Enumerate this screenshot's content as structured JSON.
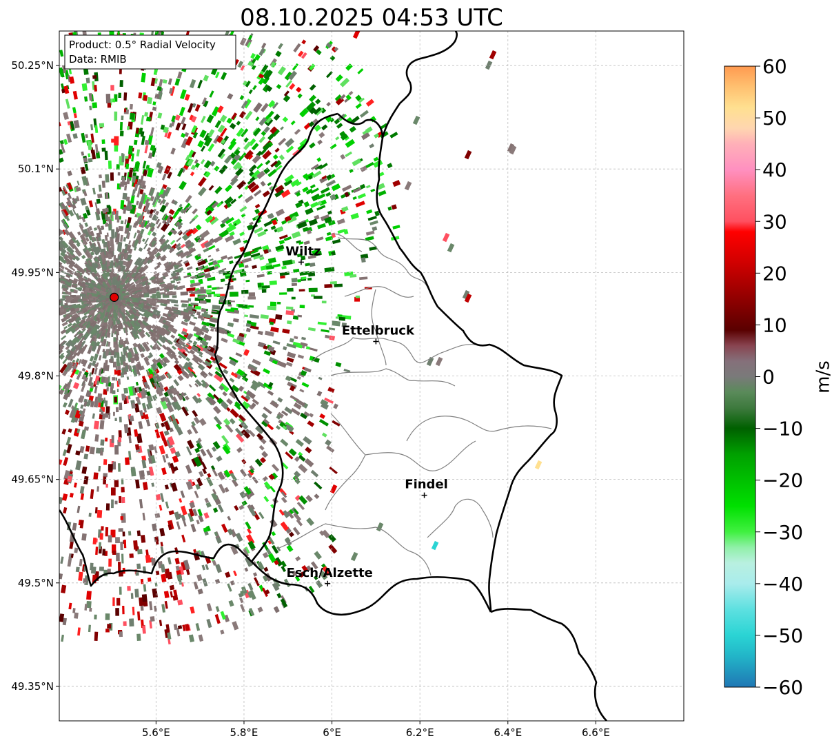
{
  "title": "08.10.2025 04:53 UTC",
  "info_box": {
    "product": "Product: 0.5° Radial Velocity",
    "data_source": "Data: RMIB"
  },
  "map": {
    "lon_range": [
      5.38,
      6.8
    ],
    "lat_range": [
      49.3,
      50.3
    ],
    "radar_site": {
      "lon": 5.505,
      "lat": 49.914
    },
    "lat_ticks": [
      {
        "value": 50.25,
        "label": "50.25°N"
      },
      {
        "value": 50.1,
        "label": "50.1°N"
      },
      {
        "value": 49.95,
        "label": "49.95°N"
      },
      {
        "value": 49.8,
        "label": "49.8°N"
      },
      {
        "value": 49.65,
        "label": "49.65°N"
      },
      {
        "value": 49.5,
        "label": "49.5°N"
      },
      {
        "value": 49.35,
        "label": "49.35°N"
      }
    ],
    "lon_ticks": [
      {
        "value": 5.6,
        "label": "5.6°E"
      },
      {
        "value": 5.8,
        "label": "5.8°E"
      },
      {
        "value": 6.0,
        "label": "6°E"
      },
      {
        "value": 6.2,
        "label": "6.2°E"
      },
      {
        "value": 6.4,
        "label": "6.4°E"
      },
      {
        "value": 6.6,
        "label": "6.6°E"
      }
    ],
    "cities": [
      {
        "name": "Wiltz",
        "lon": 5.93,
        "lat": 49.965
      },
      {
        "name": "Ettelbruck",
        "lon": 6.1,
        "lat": 49.85
      },
      {
        "name": "Findel",
        "lon": 6.21,
        "lat": 49.627
      },
      {
        "name": "Esch/Alzette",
        "lon": 5.99,
        "lat": 49.499
      }
    ]
  },
  "colorbar": {
    "label": "m/s",
    "min": -60,
    "max": 60,
    "ticks": [
      {
        "value": 60,
        "label": "60"
      },
      {
        "value": 50,
        "label": "50"
      },
      {
        "value": 40,
        "label": "40"
      },
      {
        "value": 30,
        "label": "30"
      },
      {
        "value": 20,
        "label": "20"
      },
      {
        "value": 10,
        "label": "10"
      },
      {
        "value": 0,
        "label": "0"
      },
      {
        "value": -10,
        "label": "−10"
      },
      {
        "value": -20,
        "label": "−20"
      },
      {
        "value": -30,
        "label": "−30"
      },
      {
        "value": -40,
        "label": "−40"
      },
      {
        "value": -50,
        "label": "−50"
      },
      {
        "value": -60,
        "label": "−60"
      }
    ],
    "stops": [
      {
        "value": -60,
        "color": "#1f77b4"
      },
      {
        "value": -54,
        "color": "#22b5c8"
      },
      {
        "value": -50,
        "color": "#2ad4d4"
      },
      {
        "value": -45,
        "color": "#5de0e0"
      },
      {
        "value": -40,
        "color": "#a9ecec"
      },
      {
        "value": -36,
        "color": "#b9f0e0"
      },
      {
        "value": -33,
        "color": "#90f0a8"
      },
      {
        "value": -30,
        "color": "#40f040"
      },
      {
        "value": -25,
        "color": "#00e000"
      },
      {
        "value": -20,
        "color": "#00c000"
      },
      {
        "value": -15,
        "color": "#00a000"
      },
      {
        "value": -10,
        "color": "#006000"
      },
      {
        "value": -6,
        "color": "#3e7a3e"
      },
      {
        "value": -3,
        "color": "#5a8a5a"
      },
      {
        "value": 0,
        "color": "#7a7a7a"
      },
      {
        "value": 3,
        "color": "#85707a"
      },
      {
        "value": 6,
        "color": "#884450"
      },
      {
        "value": 9,
        "color": "#5a0000"
      },
      {
        "value": 15,
        "color": "#900000"
      },
      {
        "value": 22,
        "color": "#d00000"
      },
      {
        "value": 28,
        "color": "#ff0000"
      },
      {
        "value": 30,
        "color": "#ff5060"
      },
      {
        "value": 35,
        "color": "#ff7080"
      },
      {
        "value": 40,
        "color": "#ff90c0"
      },
      {
        "value": 45,
        "color": "#ffb0b8"
      },
      {
        "value": 48,
        "color": "#ffd6b0"
      },
      {
        "value": 52,
        "color": "#ffe090"
      },
      {
        "value": 56,
        "color": "#ffc070"
      },
      {
        "value": 60,
        "color": "#ff9a50"
      }
    ]
  },
  "colors": {
    "border": "#000000",
    "cantons": "#808080",
    "grid": "#bbbbbb",
    "radar_site": "#e00000"
  }
}
